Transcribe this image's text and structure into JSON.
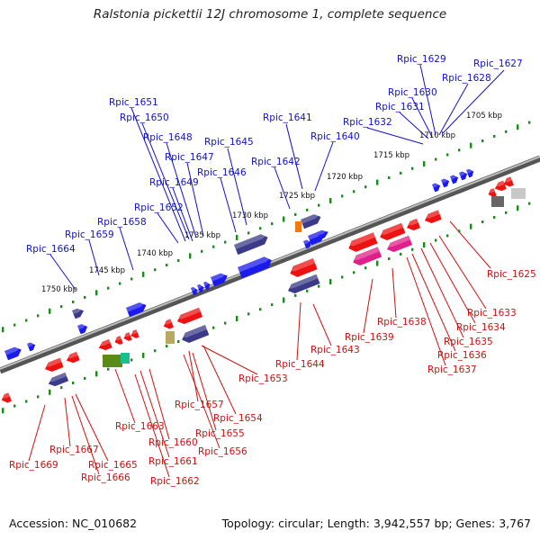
{
  "title": "Ralstonia pickettii 12J chromosome 1, complete sequence",
  "footer": {
    "accession": "Accession: NC_010682",
    "summary": "Topology: circular; Length: 3,942,557 bp; Genes: 3,767"
  },
  "colors": {
    "backbone": "#8a8a8a",
    "forward_gene": "#1a1aee",
    "forward_dark": "#3a3a88",
    "reverse_gene": "#ee1111",
    "reverse_pink": "#e0208a",
    "grid_dots": "#1a8a1a",
    "forward_label": "#1111cc",
    "reverse_label": "#cc1111"
  },
  "scale_ticks": [
    "1705 kbp",
    "1710 kbp",
    "1715 kbp",
    "1720 kbp",
    "1725 kbp",
    "1730 kbp",
    "1735 kbp",
    "1740 kbp",
    "1745 kbp",
    "1750 kbp"
  ],
  "forward_labels": [
    "Rpic_1629",
    "Rpic_1627",
    "Rpic_1628",
    "Rpic_1630",
    "Rpic_1631",
    "Rpic_1632",
    "Rpic_1641",
    "Rpic_1640",
    "Rpic_1651",
    "Rpic_1650",
    "Rpic_1648",
    "Rpic_1645",
    "Rpic_1647",
    "Rpic_1642",
    "Rpic_1646",
    "Rpic_1649",
    "Rpic_1652",
    "Rpic_1658",
    "Rpic_1659",
    "Rpic_1664"
  ],
  "reverse_labels": [
    "Rpic_1625",
    "Rpic_1633",
    "Rpic_1634",
    "Rpic_1635",
    "Rpic_1636",
    "Rpic_1637",
    "Rpic_1638",
    "Rpic_1639",
    "Rpic_1643",
    "Rpic_1644",
    "Rpic_1653",
    "Rpic_1654",
    "Rpic_1657",
    "Rpic_1655",
    "Rpic_1656",
    "Rpic_1660",
    "Rpic_1661",
    "Rpic_1662",
    "Rpic_1663",
    "Rpic_1665",
    "Rpic_1666",
    "Rpic_1667",
    "Rpic_1669"
  ]
}
